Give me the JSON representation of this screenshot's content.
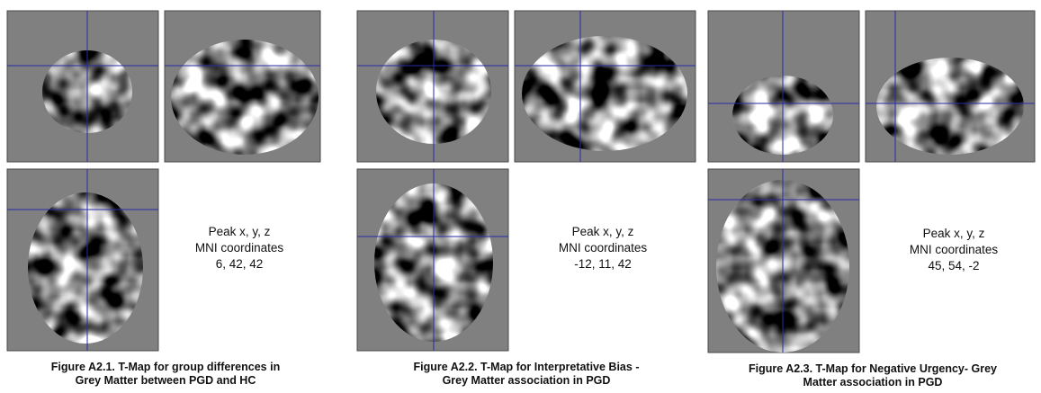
{
  "panels": [
    {
      "peak": [
        "Peak x, y, z",
        "MNI coordinates",
        "6, 42, 42"
      ],
      "caption": [
        "Figure A2.1.  T-Map for group differences in",
        "Grey Matter between PGD and HC"
      ]
    },
    {
      "peak": [
        "Peak x, y, z",
        "MNI coordinates",
        "-12, 11, 42"
      ],
      "caption": [
        "Figure A2.2.  T-Map for Interpretative Bias -",
        "Grey Matter association in PGD"
      ]
    },
    {
      "peak": [
        "Peak x, y, z",
        "MNI coordinates",
        "45, 54, -2"
      ],
      "caption": [
        "Figure A2.3.  T-Map for Negative Urgency- Grey",
        "Matter association in PGD"
      ]
    }
  ]
}
